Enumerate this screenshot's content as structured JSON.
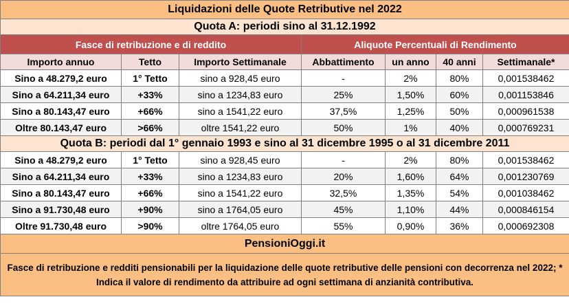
{
  "title": "Liquidazioni delle Quote Retributive nel 2022",
  "quota_a": {
    "heading": "Quota A: periodi sino al 31.12.1992",
    "rows": [
      {
        "importo": "Sino a 48.279,2 euro",
        "tetto": "1° Tetto",
        "settimanale": "sino a 928,45 euro",
        "abbattimento": "-",
        "un_anno": "2%",
        "quaranta_anni": "80%",
        "rend_settimanale": "0,001538462"
      },
      {
        "importo": "Sino a 64.211,34 euro",
        "tetto": "+33%",
        "settimanale": "sino a 1234,83 euro",
        "abbattimento": "25%",
        "un_anno": "1,50%",
        "quaranta_anni": "60%",
        "rend_settimanale": "0,001153846"
      },
      {
        "importo": "Sino a 80.143,47 euro",
        "tetto": "+66%",
        "settimanale": "sino a 1541,22 euro",
        "abbattimento": "37,5%",
        "un_anno": "1,25%",
        "quaranta_anni": "50%",
        "rend_settimanale": "0,000961538"
      },
      {
        "importo": "Oltre 80.143,47 euro",
        "tetto": ">66%",
        "settimanale": "oltre 1541,22 euro",
        "abbattimento": "50%",
        "un_anno": "1%",
        "quaranta_anni": "40%",
        "rend_settimanale": "0,000769231"
      }
    ]
  },
  "headers": {
    "group_left": "Fasce di retribuzione e di reddito",
    "group_right": "Aliquote Percentuali di Rendimento",
    "importo": "Importo annuo",
    "tetto": "Tetto",
    "settimanale": "Importo Settimanale",
    "abbattimento": "Abbattimento",
    "un_anno": "un anno",
    "quaranta_anni": "40 anni",
    "rend_settimanale": "Settimanale*"
  },
  "quota_b": {
    "heading": "Quota B: periodi dal 1° gennaio 1993 e sino al 31 dicembre 1995 o al 31 dicembre 2011",
    "rows": [
      {
        "importo": "Sino a 48.279,2 euro",
        "tetto": "1° Tetto",
        "settimanale": "sino a 928,45 euro",
        "abbattimento": "-",
        "un_anno": "2%",
        "quaranta_anni": "80%",
        "rend_settimanale": "0,001538462"
      },
      {
        "importo": "Sino a 64.211,34 euro",
        "tetto": "+33%",
        "settimanale": "sino a 1234,83 euro",
        "abbattimento": "20%",
        "un_anno": "1,60%",
        "quaranta_anni": "64%",
        "rend_settimanale": "0,001230769"
      },
      {
        "importo": "Sino a 80.143,47 euro",
        "tetto": "+66%",
        "settimanale": "sino a 1541,22 euro",
        "abbattimento": "32,5%",
        "un_anno": "1,35%",
        "quaranta_anni": "54%",
        "rend_settimanale": "0,001038462"
      },
      {
        "importo": "Sino a 91.730,48 euro",
        "tetto": "+90%",
        "settimanale": "sino a 1764,05 euro",
        "abbattimento": "45%",
        "un_anno": "1,10%",
        "quaranta_anni": "44%",
        "rend_settimanale": "0,000846154"
      },
      {
        "importo": "Oltre 91.730,48 euro",
        "tetto": ">90%",
        "settimanale": "oltre 1764,05 euro",
        "abbattimento": "55%",
        "un_anno": "0,90%",
        "quaranta_anni": "36%",
        "rend_settimanale": "0,000692308"
      }
    ]
  },
  "brand": "PensioniOggi.it",
  "note": "Fasce di retribuzione e redditi pensionabili per la liquidazione delle quote retributive delle pensioni con decorrenza nel 2022; * Indica il valore di rendimento da attribuire ad ogni settimana di anzianità contributiva.",
  "colors": {
    "title_bg": "#fbbf84",
    "quota_bg": "#fce4d1",
    "header_bg": "#c0504d",
    "subheader_bg": "#f2dbdb",
    "alt_row_bg": "#f2f2f2"
  }
}
